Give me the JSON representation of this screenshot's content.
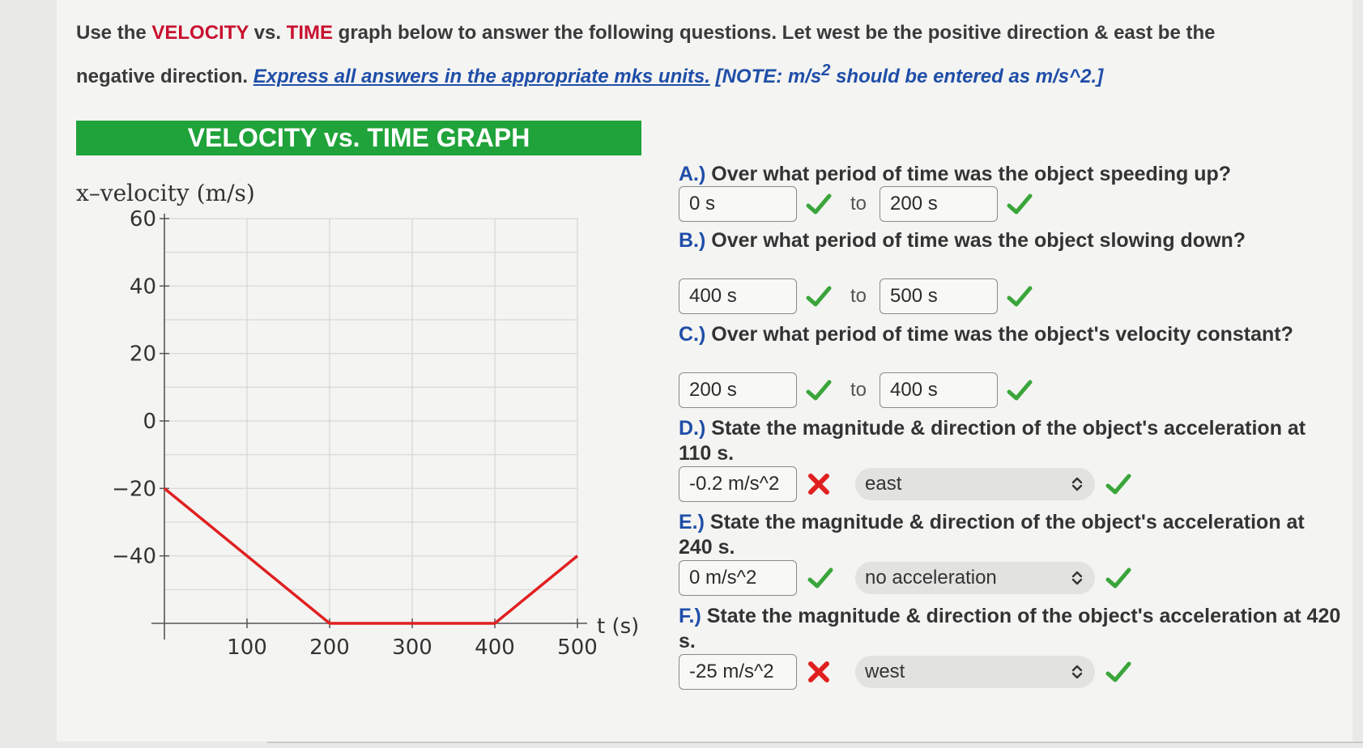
{
  "instructions": {
    "part1": "Use the ",
    "velocity_word": "VELOCITY",
    "part2": " vs. ",
    "time_word": "TIME",
    "part3": " graph below to answer the following questions. Let west be the positive direction & east be the negative direction. ",
    "mks_note": "Express all answers in the appropriate mks units.",
    "note_text": "[NOTE: m/s",
    "note_sup": "2",
    "note_tail": " should be entered as m/s^2.]"
  },
  "banner_title": "VELOCITY vs. TIME GRAPH",
  "chart_data": {
    "type": "line",
    "ylabel": "x–velocity (m/s)",
    "xlabel": "t (s)",
    "x_ticks": [
      "100",
      "200",
      "300",
      "400",
      "500"
    ],
    "y_ticks": [
      "60",
      "40",
      "20",
      "0",
      "−20",
      "−40"
    ],
    "x_tick_values": [
      100,
      200,
      300,
      400,
      500
    ],
    "y_tick_values": [
      60,
      40,
      20,
      0,
      -20,
      -40
    ],
    "xlim": [
      0,
      500
    ],
    "ylim": [
      -60,
      60
    ],
    "grid": true,
    "line_color": "#e02020",
    "series": [
      {
        "x": [
          0,
          200,
          400,
          500
        ],
        "y": [
          -20,
          -60,
          -60,
          -40
        ]
      }
    ]
  },
  "questions": [
    {
      "label": "A.)",
      "text": " Over what period of time was the object speeding up?",
      "start": "0 s",
      "end": "200 s",
      "start_ok": true,
      "end_ok": true
    },
    {
      "label": "B.)",
      "text": " Over what period of time was the object slowing down?",
      "start": "400 s",
      "end": "500 s",
      "start_ok": true,
      "end_ok": true
    },
    {
      "label": "C.)",
      "text": " Over what period of time was the object's velocity constant?",
      "start": "200 s",
      "end": "400 s",
      "start_ok": true,
      "end_ok": true
    },
    {
      "label": "D.)",
      "text": " State the magnitude & direction of the object's acceleration at 110 s.",
      "value": "-0.2 m/s^2",
      "direction": "east",
      "value_ok": false,
      "direction_ok": true
    },
    {
      "label": "E.)",
      "text": " State the magnitude & direction of the object's acceleration at 240 s.",
      "value": "0 m/s^2",
      "direction": "no acceleration",
      "value_ok": true,
      "direction_ok": true
    },
    {
      "label": "F.)",
      "text": " State the magnitude & direction of the object's acceleration at 420 s.",
      "value": "-25 m/s^2",
      "direction": "west",
      "value_ok": false,
      "direction_ok": true
    }
  ],
  "range_connector": "to",
  "colors": {
    "check": "#3aa53a",
    "cross": "#e02020",
    "label_blue": "#1f4ea8",
    "banner": "#1fa33a"
  }
}
